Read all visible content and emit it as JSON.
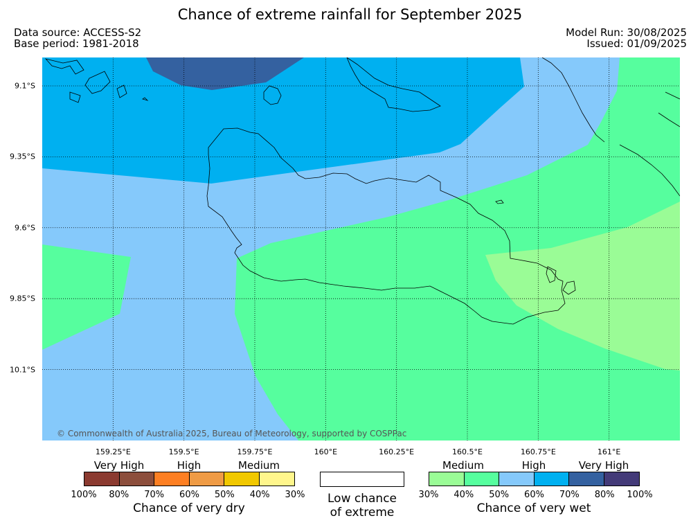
{
  "header": {
    "title": "Chance of extreme rainfall for September 2025",
    "data_source": "Data source: ACCESS-S2",
    "base_period": "Base period: 1981-2018",
    "model_run": "Model Run: 30/08/2025",
    "issued": "Issued: 01/09/2025"
  },
  "map": {
    "lon_range": [
      159.0,
      161.25
    ],
    "lat_range": [
      -10.35,
      -9.0
    ],
    "lat_ticks": [
      "9.1°S",
      "9.35°S",
      "9.6°S",
      "9.85°S",
      "10.1°S"
    ],
    "lon_ticks": [
      "159.25°E",
      "159.5°E",
      "159.75°E",
      "160°E",
      "160.25°E",
      "160.5°E",
      "160.75°E",
      "161°E"
    ],
    "colors": {
      "wet_50_60": "#85c9fb",
      "wet_60_70": "#00b0f0",
      "wet_70_80": "#3461a0",
      "wet_40_50": "#56fe9e",
      "wet_30_40": "#9afc96",
      "coastline": "#000000",
      "gridline": "#000000"
    },
    "copyright": "© Commonwealth of Australia 2025, Bureau of Meteorology, supported by COSPPac"
  },
  "legend": {
    "dry": {
      "category_labels": [
        "Very High",
        "High",
        "Medium"
      ],
      "colors": [
        "#8b3a30",
        "#8c4e3c",
        "#fd7f23",
        "#ef9b45",
        "#f1c800",
        "#fff68c"
      ],
      "ticks": [
        "100%",
        "80%",
        "70%",
        "60%",
        "50%",
        "40%",
        "30%"
      ],
      "title": "Chance of very dry"
    },
    "neutral": {
      "line1": "Low chance",
      "line2": "of extreme"
    },
    "wet": {
      "category_labels": [
        "Medium",
        "High",
        "Very High"
      ],
      "colors": [
        "#9afc96",
        "#56fe9e",
        "#85c9fb",
        "#00b0f0",
        "#3461a0",
        "#433a78"
      ],
      "ticks": [
        "30%",
        "40%",
        "50%",
        "60%",
        "70%",
        "80%",
        "100%"
      ],
      "title": "Chance of very wet"
    }
  }
}
